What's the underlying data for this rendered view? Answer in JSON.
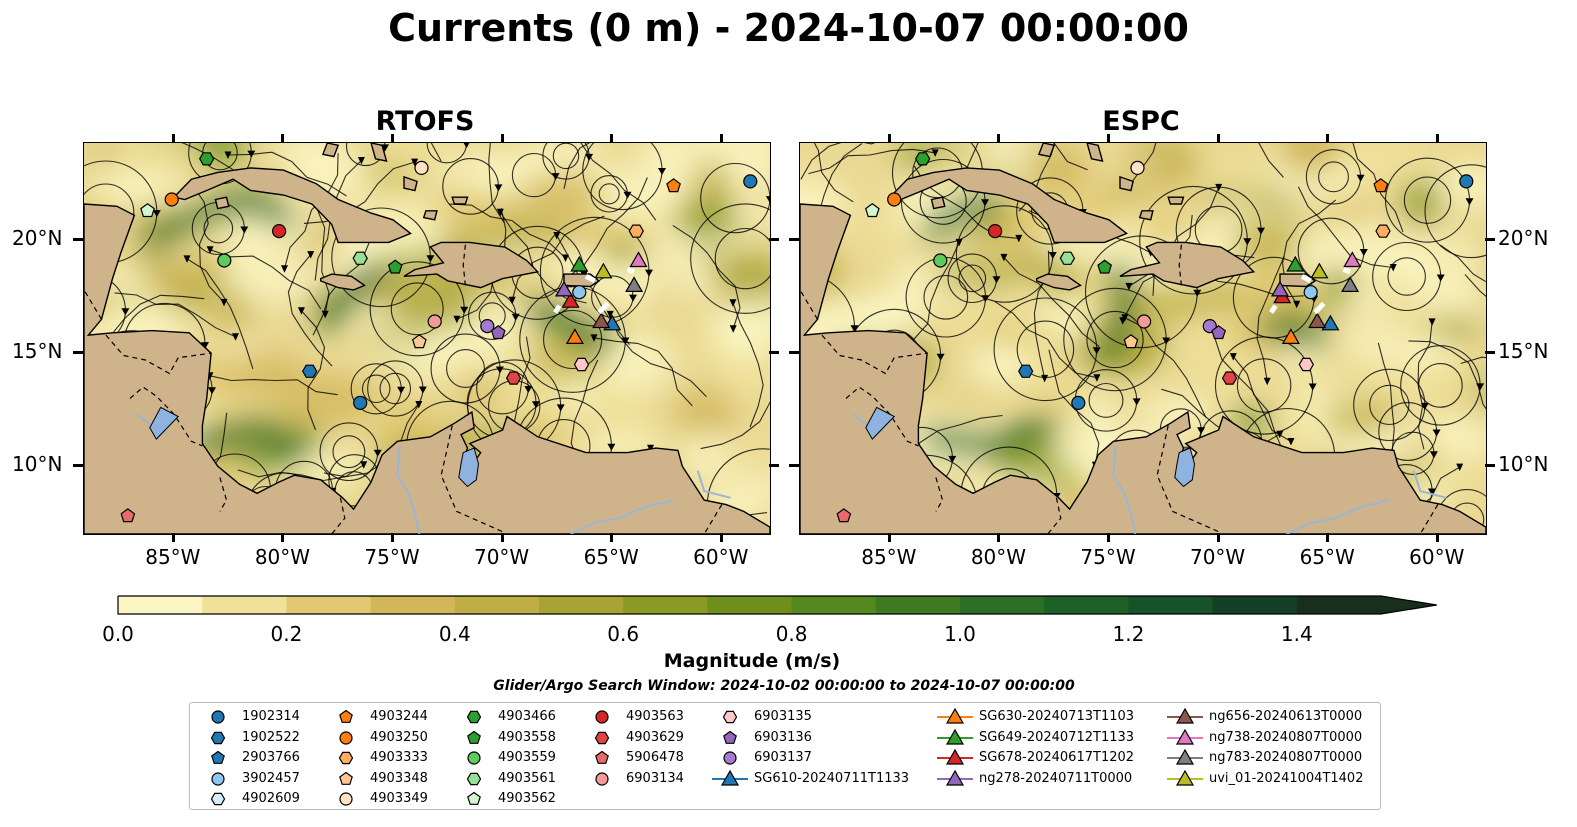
{
  "title": "Currents (0 m) - 2024-10-07 00:00:00",
  "panels": [
    {
      "title": "RTOFS"
    },
    {
      "title": "ESPC"
    }
  ],
  "lon_ticks": [
    "85°W",
    "80°W",
    "75°W",
    "70°W",
    "65°W",
    "60°W"
  ],
  "lat_ticks": [
    "20°N",
    "15°N",
    "10°N"
  ],
  "colorbar": {
    "label": "Magnitude (m/s)",
    "ticks": [
      "0.0",
      "0.2",
      "0.4",
      "0.6",
      "0.8",
      "1.0",
      "1.2",
      "1.4"
    ],
    "range": [
      0,
      1.5
    ],
    "extend": "max",
    "colors": [
      "#fbf6c4",
      "#efe09a",
      "#e0c972",
      "#d2b75a",
      "#bfae45",
      "#a9a234",
      "#8b9a22",
      "#6f8f1d",
      "#54871e",
      "#3e7a22",
      "#2b6e26",
      "#1d6129",
      "#16522a",
      "#153f25",
      "#182f1e"
    ]
  },
  "search_window": "Glider/Argo Search Window: 2024-10-02 00:00:00 to 2024-10-07 00:00:00",
  "colors": {
    "land": "#cfb38b",
    "lake": "#8fb3e0",
    "river": "#9bb5d6",
    "ocean_base": "#ead993"
  },
  "legend": [
    {
      "label": "1902314",
      "marker": "circle",
      "color": "#1f77b4"
    },
    {
      "label": "1902522",
      "marker": "hexagon",
      "color": "#1f77b4"
    },
    {
      "label": "2903766",
      "marker": "pentagon",
      "color": "#1f77b4"
    },
    {
      "label": "3902457",
      "marker": "circle",
      "color": "#8ec6ef"
    },
    {
      "label": "4902609",
      "marker": "hexagon",
      "color": "#d6ecfb"
    },
    {
      "label": "4903244",
      "marker": "pentagon",
      "color": "#ff7f0e"
    },
    {
      "label": "4903250",
      "marker": "circle",
      "color": "#ff7f0e"
    },
    {
      "label": "4903333",
      "marker": "hexagon",
      "color": "#ffae60"
    },
    {
      "label": "4903348",
      "marker": "pentagon",
      "color": "#ffc892"
    },
    {
      "label": "4903349",
      "marker": "circle",
      "color": "#ffe3c4"
    },
    {
      "label": "4903466",
      "marker": "hexagon",
      "color": "#2ca02c"
    },
    {
      "label": "4903558",
      "marker": "pentagon",
      "color": "#2ca02c"
    },
    {
      "label": "4903559",
      "marker": "circle",
      "color": "#5ccc5c"
    },
    {
      "label": "4903561",
      "marker": "hexagon",
      "color": "#98e098"
    },
    {
      "label": "4903562",
      "marker": "pentagon",
      "color": "#d4f5cf"
    },
    {
      "label": "4903563",
      "marker": "circle",
      "color": "#d62728"
    },
    {
      "label": "4903629",
      "marker": "hexagon",
      "color": "#e04545"
    },
    {
      "label": "5906478",
      "marker": "pentagon",
      "color": "#e86a6a"
    },
    {
      "label": "6903134",
      "marker": "circle",
      "color": "#f29a9a"
    },
    {
      "label": "6903135",
      "marker": "hexagon",
      "color": "#ffc7c7"
    },
    {
      "label": "6903136",
      "marker": "pentagon",
      "color": "#9467bd"
    },
    {
      "label": "6903137",
      "marker": "circle",
      "color": "#a47ad0"
    },
    {
      "label": "SG610-20240711T1133",
      "marker": "triangle",
      "color": "#1f77b4"
    },
    {
      "label": "SG630-20240713T1103",
      "marker": "triangle",
      "color": "#ff7f0e"
    },
    {
      "label": "SG649-20240712T1133",
      "marker": "triangle",
      "color": "#2ca02c"
    },
    {
      "label": "SG678-20240617T1202",
      "marker": "triangle",
      "color": "#d62728"
    },
    {
      "label": "ng278-20240711T0000",
      "marker": "triangle",
      "color": "#9467bd"
    },
    {
      "label": "ng656-20240613T0000",
      "marker": "triangle",
      "color": "#8c564b"
    },
    {
      "label": "ng738-20240807T0000",
      "marker": "triangle",
      "color": "#e377c2"
    },
    {
      "label": "ng783-20240807T0000",
      "marker": "triangle",
      "color": "#7f7f7f"
    },
    {
      "label": "uvi_01-20241004T1402",
      "marker": "triangle",
      "color": "#bcbd22"
    }
  ]
}
